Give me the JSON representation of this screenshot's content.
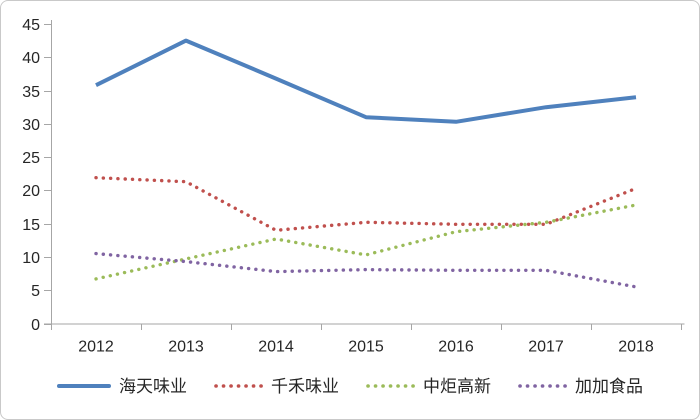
{
  "chart_data": {
    "type": "line",
    "title": "",
    "categories": [
      "2012",
      "2013",
      "2014",
      "2015",
      "2016",
      "2017",
      "2018"
    ],
    "series": [
      {
        "name": "海天味业",
        "color": "#4F81BD",
        "style": "solid",
        "values": [
          35.8,
          42.5,
          36.8,
          31.0,
          30.3,
          32.5,
          34.0
        ]
      },
      {
        "name": "千禾味业",
        "color": "#C0504D",
        "style": "dotted",
        "values": [
          21.9,
          21.3,
          14.0,
          15.2,
          14.9,
          14.9,
          20.3
        ]
      },
      {
        "name": "中炬高新",
        "color": "#9BBB59",
        "style": "dotted",
        "values": [
          6.7,
          9.7,
          12.7,
          10.3,
          13.8,
          15.2,
          17.8
        ]
      },
      {
        "name": "加加食品",
        "color": "#8064A2",
        "style": "dotted",
        "values": [
          10.5,
          9.3,
          7.8,
          8.1,
          8.0,
          8.0,
          5.5
        ]
      }
    ],
    "xlabel": "",
    "ylabel": "",
    "ylim": [
      0,
      45
    ],
    "y_ticks": [
      0,
      5,
      10,
      15,
      20,
      25,
      30,
      35,
      40,
      45
    ],
    "grid": false,
    "legend_position": "bottom",
    "axis_color": "#a6a6a6",
    "text_color": "#262626"
  }
}
